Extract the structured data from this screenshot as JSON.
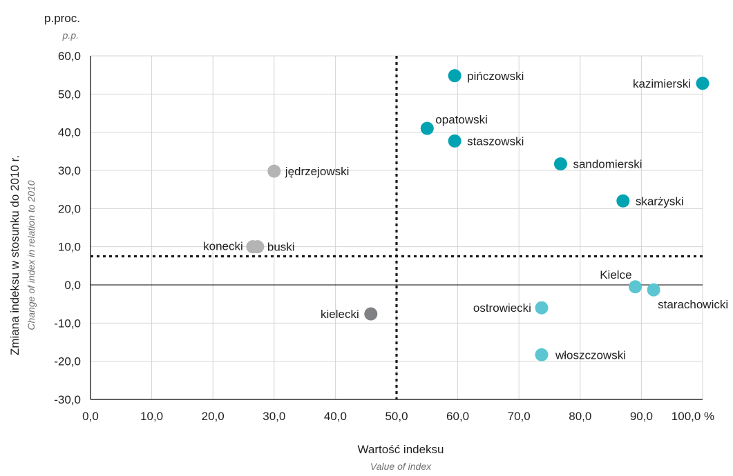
{
  "chart_data": {
    "type": "scatter",
    "y_unit": "p.proc.",
    "y_unit_en": "p.p.",
    "ylabel": "Zmiana indeksu w stosunku do 2010 r.",
    "ylabel_en": "Change of index in relation to 2010",
    "xlabel": "Wartość indeksu",
    "xlabel_en": "Value of index",
    "xlim": [
      0,
      100
    ],
    "ylim": [
      -30,
      60
    ],
    "x_ticks": [
      "0,0",
      "10,0",
      "20,0",
      "30,0",
      "40,0",
      "50,0",
      "60,0",
      "70,0",
      "80,0",
      "90,0",
      "100,0 %"
    ],
    "y_ticks": [
      "60,0",
      "50,0",
      "40,0",
      "30,0",
      "20,0",
      "10,0",
      "0,0",
      "-10,0",
      "-20,0",
      "-30,0"
    ],
    "grid": true,
    "reference_lines": {
      "x": 50,
      "y": 7.5
    },
    "colors": {
      "teal": "#00a3b1",
      "light_teal": "#5bc6d1",
      "light_gray": "#b4b4b4",
      "dark_gray": "#808184"
    },
    "points": [
      {
        "label": "pińczowski",
        "x": 59.5,
        "y": 54.8,
        "color": "#00a3b1"
      },
      {
        "label": "kazimierski",
        "x": 100.0,
        "y": 52.8,
        "color": "#00a3b1"
      },
      {
        "label": "opatowski",
        "x": 55.0,
        "y": 41.0,
        "color": "#00a3b1"
      },
      {
        "label": "staszowski",
        "x": 59.5,
        "y": 37.7,
        "color": "#00a3b1"
      },
      {
        "label": "sandomierski",
        "x": 76.8,
        "y": 31.7,
        "color": "#00a3b1"
      },
      {
        "label": "skarżyski",
        "x": 87.0,
        "y": 22.0,
        "color": "#00a3b1"
      },
      {
        "label": "jędrzejowski",
        "x": 30.0,
        "y": 29.8,
        "color": "#b4b4b4"
      },
      {
        "label": "konecki",
        "x": 26.5,
        "y": 10.0,
        "color": "#b4b4b4"
      },
      {
        "label": "buski",
        "x": 27.3,
        "y": 10.0,
        "color": "#b4b4b4"
      },
      {
        "label": "kielecki",
        "x": 45.8,
        "y": -7.6,
        "color": "#808184"
      },
      {
        "label": "Kielce",
        "x": 89.0,
        "y": -0.5,
        "color": "#5bc6d1"
      },
      {
        "label": "starachowicki",
        "x": 92.0,
        "y": -1.3,
        "color": "#5bc6d1"
      },
      {
        "label": "ostrowiecki",
        "x": 73.7,
        "y": -6.0,
        "color": "#5bc6d1"
      },
      {
        "label": "włoszczowski",
        "x": 73.7,
        "y": -18.3,
        "color": "#5bc6d1"
      }
    ]
  }
}
